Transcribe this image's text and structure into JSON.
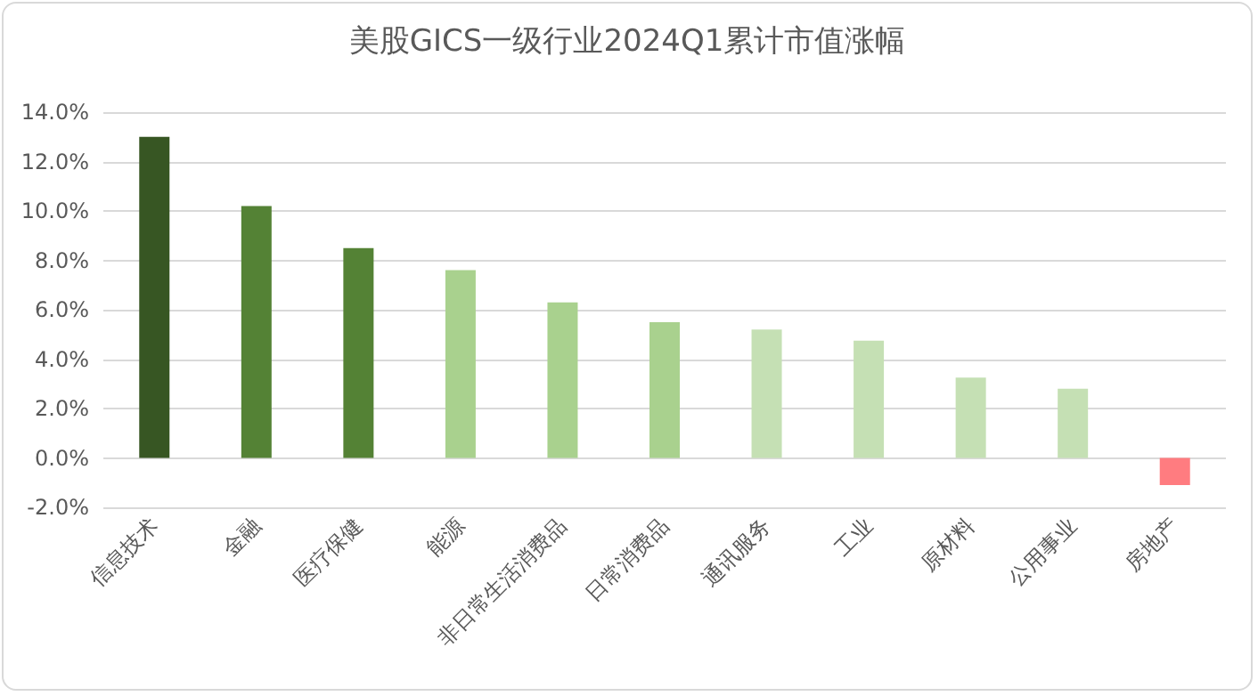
{
  "chart_data": {
    "type": "bar",
    "title": "美股GICS一级行业2024Q1累计市值涨幅",
    "categories": [
      "信息技术",
      "金融",
      "医疗保健",
      "能源",
      "非日常生活消费品",
      "日常消费品",
      "通讯服务",
      "工业",
      "原材料",
      "公用事业",
      "房地产"
    ],
    "values": [
      13.0,
      10.2,
      8.5,
      7.6,
      6.3,
      5.5,
      5.2,
      4.75,
      3.25,
      2.8,
      -1.1
    ],
    "colors": [
      "#375623",
      "#548235",
      "#548235",
      "#a9d18e",
      "#a9d18e",
      "#a9d18e",
      "#c5e0b4",
      "#c5e0b4",
      "#c5e0b4",
      "#c5e0b4",
      "#ff7c80"
    ],
    "ylim": [
      -2,
      14
    ],
    "yticks": [
      {
        "value": -2,
        "label": "-2.0%"
      },
      {
        "value": 0,
        "label": "0.0%"
      },
      {
        "value": 2,
        "label": "2.0%"
      },
      {
        "value": 4,
        "label": "4.0%"
      },
      {
        "value": 6,
        "label": "6.0%"
      },
      {
        "value": 8,
        "label": "8.0%"
      },
      {
        "value": 10,
        "label": "10.0%"
      },
      {
        "value": 12,
        "label": "12.0%"
      },
      {
        "value": 14,
        "label": "14.0%"
      }
    ],
    "grid": "y"
  }
}
